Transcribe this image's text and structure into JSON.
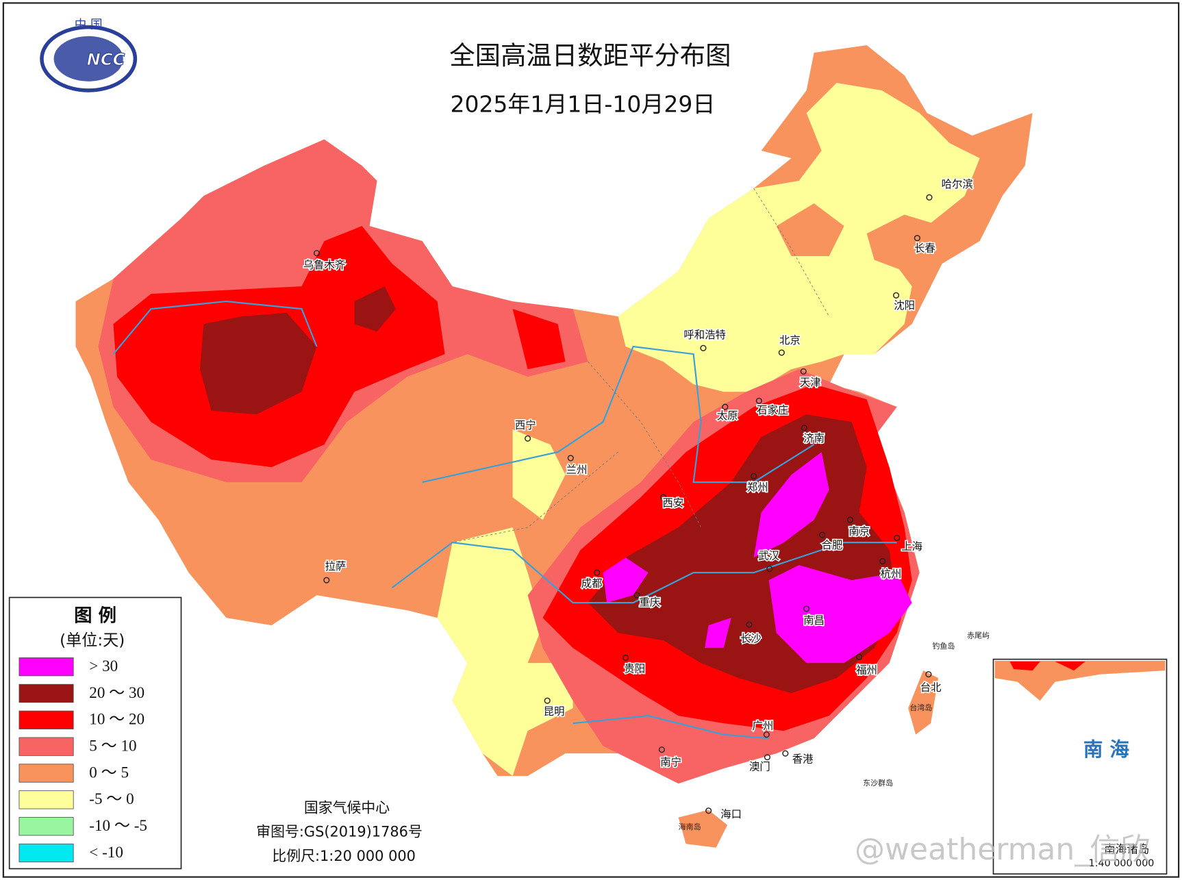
{
  "logo": {
    "top": "中 国",
    "mark": "NCC"
  },
  "title": "全国高温日数距平分布图",
  "subtitle": "2025年1月1日-10月29日",
  "legend": {
    "title": "图 例",
    "unit": "(单位:天)",
    "items": [
      {
        "label": "> 30",
        "color": "#ff00ff"
      },
      {
        "label": "20 ～ 30",
        "color": "#9b1414"
      },
      {
        "label": "10 ～ 20",
        "color": "#ff0000"
      },
      {
        "label": "5 ～ 10",
        "color": "#f86464"
      },
      {
        "label": "0 ～ 5",
        "color": "#f8935e"
      },
      {
        "label": "-5 ～ 0",
        "color": "#ffff99"
      },
      {
        "label": "-10 ～ -5",
        "color": "#99f5a0"
      },
      {
        "label": "< -10",
        "color": "#00e8f0"
      }
    ]
  },
  "cities": [
    "乌鲁木齐",
    "西宁",
    "兰州",
    "拉萨",
    "成都",
    "重庆",
    "贵阳",
    "昆明",
    "南宁",
    "西安",
    "呼和浩特",
    "北京",
    "天津",
    "石家庄",
    "太原",
    "济南",
    "郑州",
    "合肥",
    "南京",
    "上海",
    "武汉",
    "杭州",
    "南昌",
    "长沙",
    "福州",
    "广州",
    "香港",
    "澳门",
    "海口",
    "台北",
    "哈尔滨",
    "长春",
    "沈阳"
  ],
  "islands": [
    "台湾岛",
    "海南岛",
    "东沙群岛",
    "钓鱼岛",
    "赤尾屿"
  ],
  "footer": {
    "org": "国家气候中心",
    "approval": "审图号:GS(2019)1786号",
    "scale": "比例尺:1:20 000 000"
  },
  "inset": {
    "sea": "南 海",
    "label": "南海诸岛",
    "scale": "1:40 000 000"
  },
  "watermark": "@weatherman_信欣"
}
